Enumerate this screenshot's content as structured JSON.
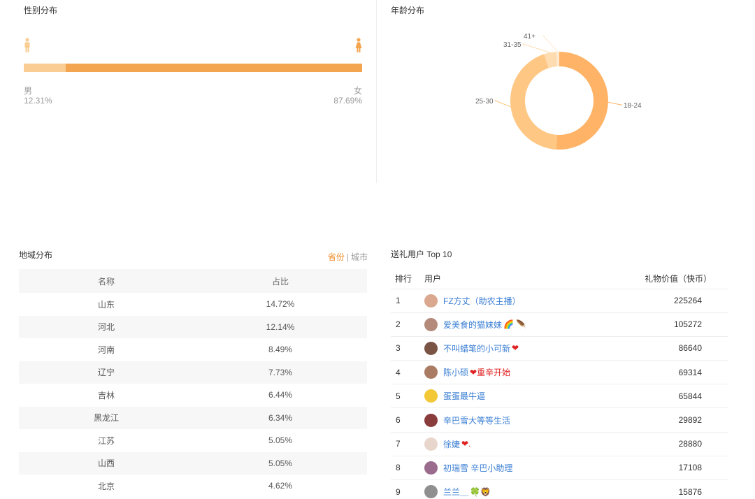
{
  "gender": {
    "title": "性别分布",
    "male_label": "男",
    "female_label": "女",
    "male_pct": "12.31%",
    "female_pct": "87.69%",
    "male_fraction": 0.1231,
    "male_color": "#f9cd93",
    "female_color": "#f4a54f",
    "male_icon": "male-person-icon",
    "female_icon": "female-person-icon"
  },
  "age": {
    "title": "年龄分布",
    "chart_data": {
      "type": "pie",
      "donut": true,
      "categories": [
        "18-24",
        "25-30",
        "31-35",
        "41+"
      ],
      "values": [
        51,
        44,
        4,
        1
      ],
      "colors": [
        "#ffb366",
        "#ffc784",
        "#ffdbb0",
        "#fde9cf"
      ]
    }
  },
  "region": {
    "title": "地域分布",
    "toggle_province": "省份",
    "toggle_sep": "|",
    "toggle_city": "城市",
    "col_name": "名称",
    "col_ratio": "占比",
    "rows": [
      {
        "name": "山东",
        "ratio": "14.72%"
      },
      {
        "name": "河北",
        "ratio": "12.14%"
      },
      {
        "name": "河南",
        "ratio": "8.49%"
      },
      {
        "name": "辽宁",
        "ratio": "7.73%"
      },
      {
        "name": "吉林",
        "ratio": "6.44%"
      },
      {
        "name": "黑龙江",
        "ratio": "6.34%"
      },
      {
        "name": "江苏",
        "ratio": "5.05%"
      },
      {
        "name": "山西",
        "ratio": "5.05%"
      },
      {
        "name": "北京",
        "ratio": "4.62%"
      }
    ]
  },
  "gifts": {
    "title": "送礼用户 Top 10",
    "col_rank": "排行",
    "col_user": "用户",
    "col_value": "礼物价值（快币）",
    "rows": [
      {
        "rank": "1",
        "user": "FZ方丈（助农主播）",
        "emoji": "",
        "value": "225264",
        "avatar_color": "#d9a88f"
      },
      {
        "rank": "2",
        "user": "爱美食的猫妹妹",
        "emoji": "🌈 🪶",
        "value": "105272",
        "avatar_color": "#b48a7a"
      },
      {
        "rank": "3",
        "user": "不叫蜡笔的小可新",
        "emoji": "❤",
        "value": "86640",
        "avatar_color": "#7a5546"
      },
      {
        "rank": "4",
        "user": "陈小硕",
        "emoji": "❤重辛开始",
        "value": "69314",
        "avatar_color": "#a97c63"
      },
      {
        "rank": "5",
        "user": "蛋蛋最牛逼",
        "emoji": "",
        "value": "65844",
        "avatar_color": "#f2c836"
      },
      {
        "rank": "6",
        "user": "辛巴雪大等等生活",
        "emoji": "",
        "value": "29892",
        "avatar_color": "#8a3b3b"
      },
      {
        "rank": "7",
        "user": "徐婕",
        "emoji": "❤.",
        "value": "28880",
        "avatar_color": "#e8d6cc"
      },
      {
        "rank": "8",
        "user": "初瑞雪 辛巴小助理",
        "emoji": "",
        "value": "17108",
        "avatar_color": "#9a6b8c"
      },
      {
        "rank": "9",
        "user": "兰兰＿",
        "emoji": "🍀🦁",
        "value": "15876",
        "avatar_color": "#8f8f8f"
      }
    ]
  }
}
